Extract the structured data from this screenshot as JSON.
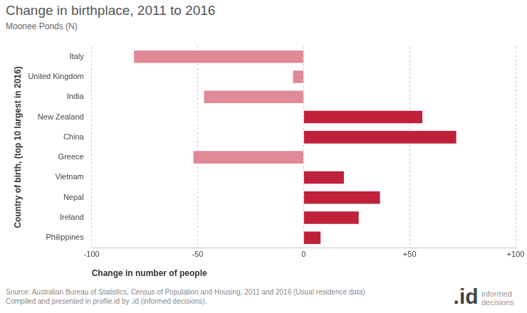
{
  "chart_data": {
    "type": "bar",
    "orientation": "horizontal",
    "title": "Change in birthplace, 2011 to 2016",
    "subtitle": "Moonee Ponds (N)",
    "x_label": "Change in number of people",
    "y_label": "Country of birth, (top 10 largest in 2016)",
    "categories": [
      "Italy",
      "United Kingdom",
      "India",
      "New Zealand",
      "China",
      "Greece",
      "Vietnam",
      "Nepal",
      "Ireland",
      "Philippines"
    ],
    "values": [
      -80,
      -5,
      -47,
      56,
      72,
      -52,
      19,
      36,
      26,
      8
    ],
    "colors": [
      "#e08a97",
      "#e08a97",
      "#e08a97",
      "#c0213a",
      "#c0213a",
      "#e08a97",
      "#c0213a",
      "#c0213a",
      "#c0213a",
      "#c0213a"
    ],
    "xlim": [
      -100,
      100
    ],
    "xticks": [
      -100,
      -50,
      0,
      {
        "value": 50,
        "label": "+50"
      },
      {
        "value": 100,
        "label": "+100"
      }
    ],
    "grid": true,
    "notes": [
      "Source: Australian Bureau of Statistics, Census of Population and Housing, 2011 and 2016 (Usual residence data)",
      "Compiled and presented in profile.id by .id (informed decisions)."
    ],
    "logo": [
      ".id",
      "informed decisions"
    ]
  }
}
